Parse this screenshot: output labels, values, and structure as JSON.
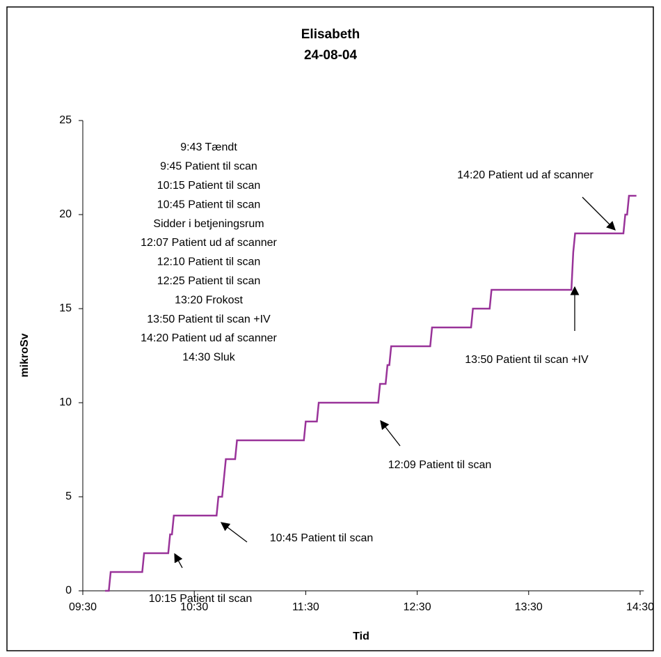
{
  "chart_data": {
    "type": "line",
    "title": [
      "Elisabeth",
      "24-08-04"
    ],
    "x_label": "Tid",
    "y_label": "mikroSv",
    "x": [
      "09:42",
      "09:44",
      "09:45",
      "10:02",
      "10:03",
      "10:16",
      "10:17",
      "10:18",
      "10:19",
      "10:42",
      "10:43",
      "10:45",
      "10:46",
      "10:47",
      "10:52",
      "10:53",
      "11:29",
      "11:30",
      "11:36",
      "11:37",
      "12:09",
      "12:10",
      "12:13",
      "12:14",
      "12:15",
      "12:16",
      "12:37",
      "12:38",
      "12:59",
      "13:00",
      "13:09",
      "13:10",
      "13:53",
      "13:54",
      "13:55",
      "14:21",
      "14:22",
      "14:23",
      "14:24",
      "14:28"
    ],
    "series": [
      {
        "name": "mikroSv",
        "color": "#993399",
        "values": [
          0,
          0,
          1,
          1,
          2,
          2,
          3,
          3,
          4,
          4,
          5,
          5,
          6,
          7,
          7,
          8,
          8,
          9,
          9,
          10,
          10,
          11,
          11,
          12,
          12,
          13,
          13,
          14,
          14,
          15,
          15,
          16,
          16,
          18,
          19,
          19,
          20,
          20,
          21,
          21
        ]
      }
    ],
    "xlim": [
      "09:30",
      "14:32"
    ],
    "xticks": [
      "09:30",
      "10:30",
      "11:30",
      "12:30",
      "13:30",
      "14:30"
    ],
    "ylim": [
      0,
      25
    ],
    "yticks": [
      0,
      5,
      10,
      15,
      20,
      25
    ],
    "notes": [
      "9:43 Tændt",
      "9:45 Patient til scan",
      "10:15 Patient til scan",
      "10:45 Patient til scan",
      "Sidder i betjeningsrum",
      "12:07 Patient ud af scanner",
      "12:10 Patient til scan",
      "12:25 Patient til scan",
      "13:20 Frokost",
      "13:50 Patient til scan +IV",
      "14:20 Patient ud af scanner",
      "14:30 Sluk"
    ],
    "annotations": [
      "10:15 Patient til scan",
      "10:45 Patient til scan",
      "12:09 Patient til scan",
      "13:50 Patient til scan +IV",
      "14:20 Patient ud af scanner"
    ]
  }
}
